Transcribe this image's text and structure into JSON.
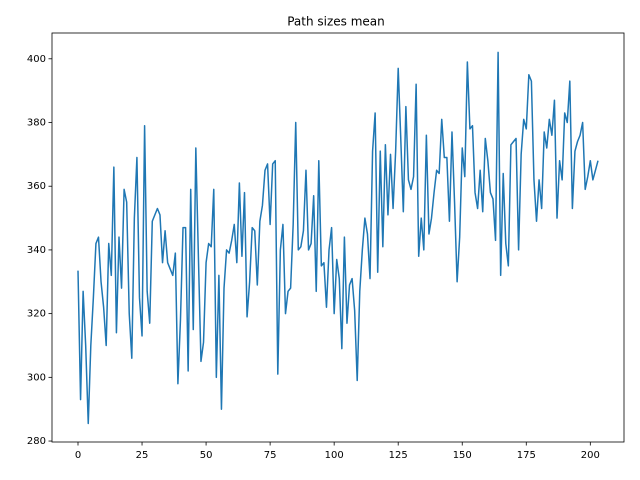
{
  "chart_data": {
    "type": "line",
    "title": "Path sizes mean",
    "x": [
      0,
      1,
      2,
      3,
      4,
      5,
      6,
      7,
      8,
      9,
      10,
      11,
      12,
      13,
      14,
      15,
      16,
      17,
      18,
      19,
      20,
      21,
      22,
      23,
      24,
      25,
      26,
      27,
      28,
      29,
      30,
      31,
      32,
      33,
      34,
      35,
      36,
      37,
      38,
      39,
      40,
      41,
      42,
      43,
      44,
      45,
      46,
      47,
      48,
      49,
      50,
      51,
      52,
      53,
      54,
      55,
      56,
      57,
      58,
      59,
      60,
      61,
      62,
      63,
      64,
      65,
      66,
      67,
      68,
      69,
      70,
      71,
      72,
      73,
      74,
      75,
      76,
      77,
      78,
      79,
      80,
      81,
      82,
      83,
      84,
      85,
      86,
      87,
      88,
      89,
      90,
      91,
      92,
      93,
      94,
      95,
      96,
      97,
      98,
      99,
      100,
      101,
      102,
      103,
      104,
      105,
      106,
      107,
      108,
      109,
      110,
      111,
      112,
      113,
      114,
      115,
      116,
      117,
      118,
      119,
      120,
      121,
      122,
      123,
      124,
      125,
      126,
      127,
      128,
      129,
      130,
      131,
      132,
      133,
      134,
      135,
      136,
      137,
      138,
      139,
      140,
      141,
      142,
      143,
      144,
      145,
      146,
      147,
      148,
      149,
      150,
      151,
      152,
      153,
      154,
      155,
      156,
      157,
      158,
      159,
      160,
      161,
      162,
      163,
      164,
      165,
      166,
      167,
      168,
      169,
      170,
      171,
      172,
      173,
      174,
      175,
      176,
      177,
      178,
      179,
      180,
      181,
      182,
      183,
      184,
      185,
      186,
      187,
      188,
      189,
      190,
      191,
      192,
      193,
      194,
      195,
      196,
      197,
      198,
      199,
      200,
      201,
      202,
      203
    ],
    "values": [
      333.5,
      293,
      327,
      310,
      285.5,
      310,
      325,
      342,
      344,
      330,
      322,
      310,
      342,
      332,
      366,
      314,
      344,
      328,
      359,
      355,
      320,
      306,
      350,
      369,
      325,
      313,
      379,
      327,
      317,
      349,
      351,
      353,
      351,
      336,
      346,
      336,
      334,
      332,
      339,
      298,
      318,
      347,
      347,
      302,
      359,
      315,
      372,
      338,
      305,
      311,
      336,
      342,
      341,
      359,
      300,
      332,
      290,
      328,
      340,
      339,
      343,
      348,
      336,
      361,
      338,
      358,
      319,
      330,
      347,
      346,
      329,
      349,
      354,
      365,
      367,
      348,
      367,
      368,
      301,
      340,
      348,
      320,
      327,
      328,
      348,
      380,
      340,
      341,
      346,
      365,
      340,
      342,
      357,
      327,
      368,
      335,
      336,
      322,
      340,
      347,
      320,
      337,
      331,
      309,
      344,
      317,
      329,
      331,
      321,
      299,
      327,
      340,
      350,
      345,
      331,
      371,
      383,
      333,
      371,
      341,
      373,
      351,
      370,
      353,
      371,
      397,
      375,
      352,
      385,
      362,
      359,
      363,
      392,
      338,
      350,
      340,
      376,
      345,
      350,
      358,
      365,
      364,
      381,
      369,
      369,
      349,
      377,
      355,
      330,
      344,
      372,
      363,
      399,
      378,
      379,
      358,
      353,
      365,
      352,
      375,
      368,
      358,
      356,
      343,
      402,
      332,
      364,
      342,
      335,
      373,
      374,
      375,
      340,
      370,
      381,
      378,
      395,
      393,
      362,
      349,
      362,
      353,
      377,
      372,
      381,
      376,
      387,
      350,
      368,
      362,
      383,
      380,
      393,
      353,
      371,
      374,
      376,
      380,
      359,
      363,
      368,
      362,
      365,
      368
    ],
    "color": "#1f77b4",
    "xlim": [
      -10.15,
      213.15
    ],
    "ylim": [
      279.7,
      408.1
    ],
    "xticks": [
      0,
      25,
      50,
      75,
      100,
      125,
      150,
      175,
      200
    ],
    "yticks": [
      280,
      300,
      320,
      340,
      360,
      380,
      400
    ]
  }
}
